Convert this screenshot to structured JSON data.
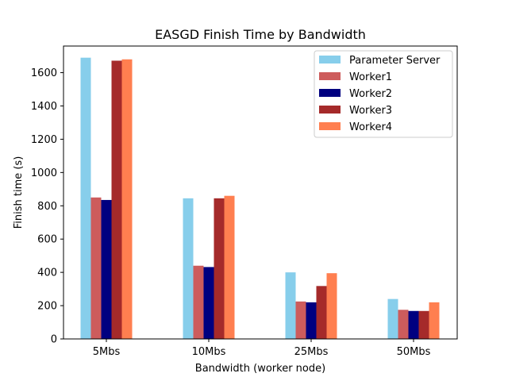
{
  "chart_data": {
    "type": "bar",
    "title": "EASGD Finish Time by Bandwidth",
    "xlabel": "Bandwidth (worker node)",
    "ylabel": "Finish time (s)",
    "categories": [
      "5Mbs",
      "10Mbs",
      "25Mbs",
      "50Mbs"
    ],
    "ylim": [
      0,
      1760
    ],
    "yticks": [
      0,
      200,
      400,
      600,
      800,
      1000,
      1200,
      1400,
      1600
    ],
    "grid": false,
    "legend_position": "top-right",
    "series": [
      {
        "name": "Parameter Server",
        "color": "#87ceeb",
        "values": [
          1690,
          845,
          400,
          240
        ]
      },
      {
        "name": "Worker1",
        "color": "#cd5c5c",
        "values": [
          850,
          440,
          225,
          175
        ]
      },
      {
        "name": "Worker2",
        "color": "#000080",
        "values": [
          835,
          432,
          220,
          168
        ]
      },
      {
        "name": "Worker3",
        "color": "#a52a2a",
        "values": [
          1672,
          845,
          318,
          168
        ]
      },
      {
        "name": "Worker4",
        "color": "#ff7f50",
        "values": [
          1680,
          860,
          395,
          220
        ]
      }
    ]
  }
}
